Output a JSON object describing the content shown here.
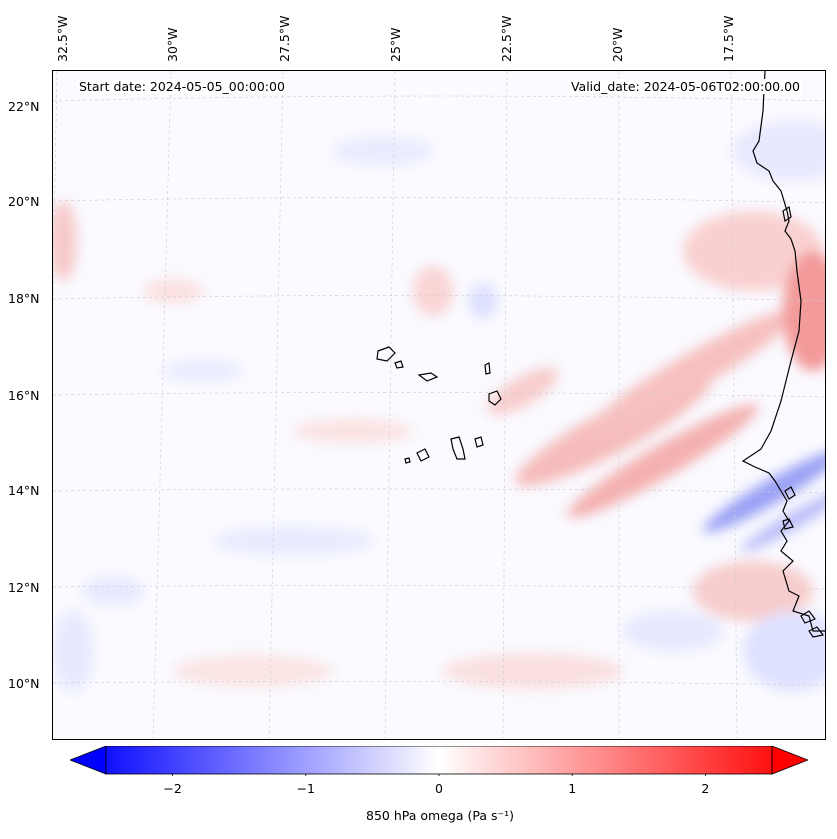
{
  "map": {
    "start_date": "Start date: 2024-05-05_00:00:00",
    "valid_date": "Valid_date: 2024-05-06T02:00:00.00",
    "lon_labels": [
      "32.5°W",
      "30°W",
      "27.5°W",
      "25°W",
      "22.5°W",
      "20°W",
      "17.5°W"
    ],
    "lat_labels": [
      "22°N",
      "20°N",
      "18°N",
      "16°N",
      "14°N",
      "12°N",
      "10°N"
    ],
    "background_color": "#fafaff",
    "coastline_color": "#000000",
    "gridline_color": "#cccccc"
  },
  "colorbar": {
    "label": "850 hPa omega (Pa s⁻¹)",
    "vmin": -2.5,
    "vmax": 2.5,
    "extend": "both",
    "tick_values": [
      -2,
      -1,
      0,
      1,
      2
    ],
    "tick_labels": [
      "−2",
      "−1",
      "0",
      "1",
      "2"
    ],
    "colors": {
      "min": "#0000ff",
      "mid": "#ffffff",
      "max": "#ff0000"
    }
  }
}
